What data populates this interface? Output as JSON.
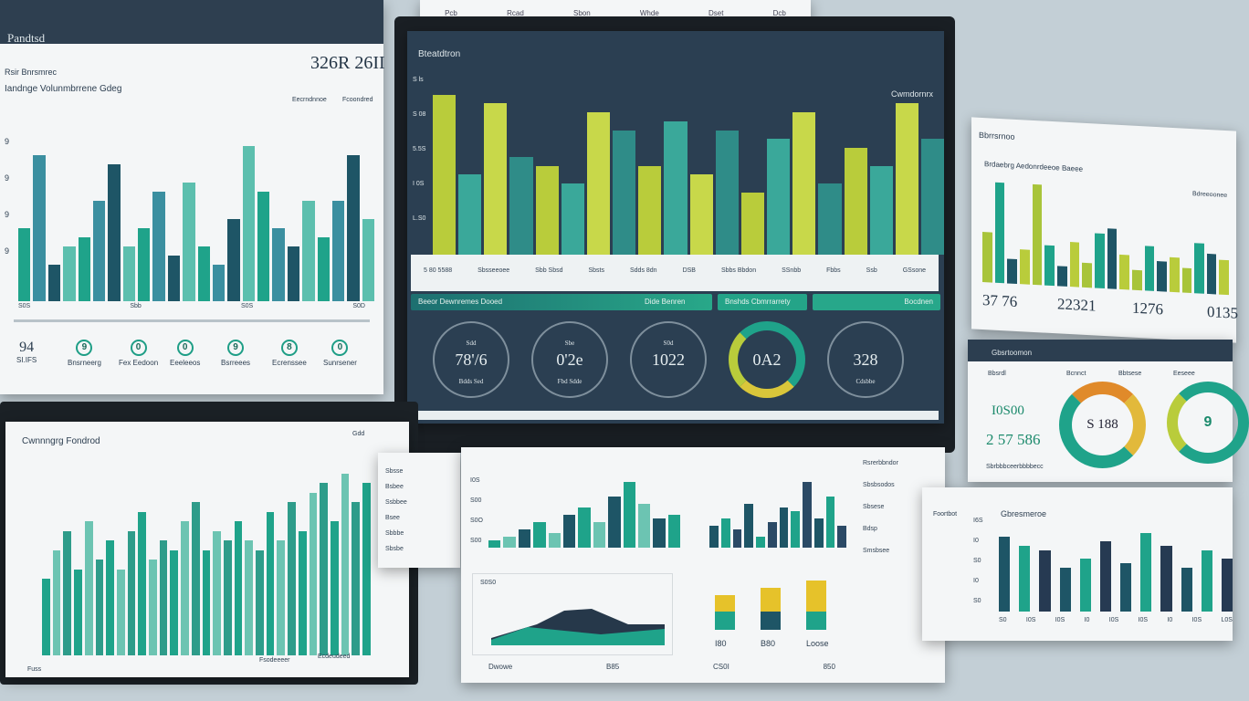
{
  "colors": {
    "teal": "#1fa38a",
    "lime": "#b9cc3b",
    "navy": "#2c3e50",
    "dark_teal": "#1e5566",
    "bg": "#c3cfd6"
  },
  "top_strip": {
    "labels": [
      "Pcb",
      "Rcad",
      "Sbon",
      "Whde",
      "Dset",
      "Dcb"
    ]
  },
  "left_top": {
    "title": "Pandtsd",
    "value": "326R 26II",
    "sub1": "Rsir Bnrsmrec",
    "sub2": "Iandnge Volunmbrrene Gdeg",
    "legend": [
      "Eecrndnnoe",
      "Fcoondred"
    ],
    "yticks": [
      "9",
      "9",
      "9",
      "9"
    ],
    "xlabels": [
      "S0S",
      "Sbb",
      "S0S",
      "S0D"
    ],
    "bars": [
      40,
      80,
      20,
      30,
      35,
      55,
      75,
      30,
      40,
      60,
      25,
      65,
      30,
      20,
      45,
      85,
      60,
      40,
      30,
      55,
      35,
      55,
      80,
      45
    ],
    "kpis": [
      {
        "icon": "",
        "value": "94",
        "label": "SI.IFS"
      },
      {
        "icon": "9",
        "label": "Bnsrneerg"
      },
      {
        "icon": "0",
        "label": "Fex Eedoon"
      },
      {
        "icon": "0",
        "label": "Eeeleeos"
      },
      {
        "icon": "9",
        "label": "Bsrreees"
      },
      {
        "icon": "8",
        "label": "Ecrenssee"
      },
      {
        "icon": "0",
        "label": "Sunrsener"
      }
    ]
  },
  "center": {
    "title": "Bteatdtron",
    "right_label": "Cwmdornrx",
    "yticks": [
      "S ls",
      "S 08",
      "5.5S",
      "I 0S",
      "L.S0"
    ],
    "bars": [
      90,
      45,
      85,
      55,
      50,
      40,
      80,
      70,
      50,
      75,
      45,
      70,
      35,
      65,
      80,
      40,
      60,
      50,
      85,
      65
    ],
    "xlabels": [
      "5 80 5588",
      "Sbsseeoee",
      "Sbb Sbsd",
      "Sbsts",
      "Sdds 8dn",
      "DSB",
      "Sbbs Bbdon",
      "SSnbb",
      "Fbbs",
      "Ssb",
      "GSsone"
    ],
    "banner": "Beeor Dewnremes Dooed",
    "buttons": [
      "Dide Benren",
      "Bnshds Cbmrrarrety",
      "Bocdnen"
    ],
    "gauges": [
      {
        "value": "78'/6",
        "top": "Sdd",
        "bottom": "Bdds Sed"
      },
      {
        "value": "0'2e",
        "top": "Sbe",
        "bottom": "Fbd Sdde"
      },
      {
        "value": "1022",
        "top": "S0d",
        "bottom": ""
      },
      {
        "value": "0A2",
        "top": "",
        "bottom": ""
      },
      {
        "value": "328",
        "top": "",
        "bottom": "Cdsbbe"
      }
    ],
    "gauge_fill_percent": 80
  },
  "right_top": {
    "title": "Bbrrsrnoo",
    "sub": "Brdaebrg Aedonrdeeoe Baeee",
    "right": "Bdreeoonee",
    "bars": [
      50,
      100,
      25,
      35,
      100,
      40,
      20,
      45,
      25,
      55,
      60,
      35,
      20,
      45,
      30,
      35,
      25,
      50,
      40,
      35
    ],
    "kpis": [
      "37 76",
      "22321",
      "1276",
      "0135"
    ]
  },
  "right_mid": {
    "title": "Gbsrtoomon",
    "labels": [
      "Bbsrdl",
      "Bcnnct",
      "Bbtsese",
      "Eeseee"
    ],
    "value1": "I0S00",
    "value2": "2 57 586",
    "gauge1": "S 188",
    "gauge2": "9",
    "footer": "Sbrbbbceerbbbbecc"
  },
  "bottom_left": {
    "title": "Cwnnngrg Fondrod",
    "right": "Gdd",
    "bars": [
      40,
      55,
      65,
      45,
      70,
      50,
      60,
      45,
      65,
      75,
      50,
      60,
      55,
      70,
      80,
      55,
      65,
      60,
      70,
      60,
      55,
      75,
      60,
      80,
      65,
      85,
      90,
      70,
      95,
      80,
      90
    ],
    "footer": [
      "Fuss",
      "Fsodeeeer",
      "Ecdeudeed"
    ]
  },
  "bottom_center": {
    "list": [
      "Sbsse",
      "Bsbee",
      "Ssbbee",
      "Bsee",
      "Sbbbe",
      "Sbsbe"
    ],
    "yticks": [
      "I0S",
      "S00",
      "S0O",
      "S00"
    ],
    "bars1": [
      10,
      15,
      25,
      35,
      20,
      45,
      55,
      35,
      70,
      90,
      60,
      40,
      45
    ],
    "bars2": [
      30,
      40,
      25,
      60,
      15,
      35,
      55,
      50,
      90,
      40,
      70,
      30
    ],
    "side": [
      "Rsrerbbndor",
      "Sbsbsodos",
      "Sbsese",
      "Bdsp",
      "Smsbsee"
    ],
    "area_label": "S0S0",
    "footer": [
      "Dwowe",
      "B85",
      "CS0I",
      "850"
    ],
    "stack_labels": [
      "I80",
      "B80",
      "Loose"
    ]
  },
  "bottom_right": {
    "title": "Gbresmeroe",
    "left": "Foortbot",
    "yticks": [
      "I6S",
      "I0",
      "S0",
      "I0",
      "S0"
    ],
    "bars": [
      85,
      75,
      70,
      50,
      60,
      80,
      55,
      90,
      75,
      50,
      70,
      60
    ],
    "xlabels": [
      "S0",
      "I0S",
      "I0S",
      "I0",
      "I0S",
      "I0S",
      "I0",
      "I0S",
      "L0S"
    ]
  }
}
